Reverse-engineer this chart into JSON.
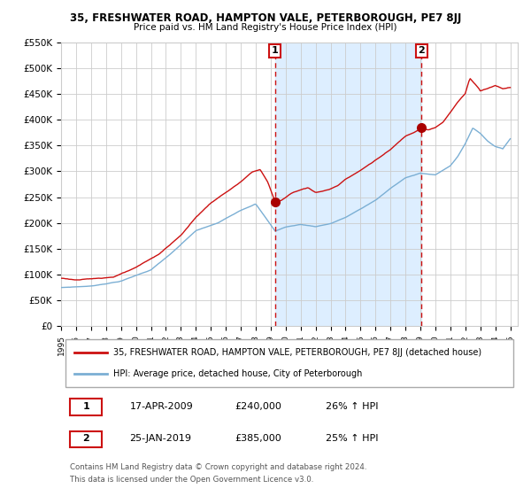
{
  "title": "35, FRESHWATER ROAD, HAMPTON VALE, PETERBOROUGH, PE7 8JJ",
  "subtitle": "Price paid vs. HM Land Registry's House Price Index (HPI)",
  "legend_line1": "35, FRESHWATER ROAD, HAMPTON VALE, PETERBOROUGH, PE7 8JJ (detached house)",
  "legend_line2": "HPI: Average price, detached house, City of Peterborough",
  "sale1_date": "17-APR-2009",
  "sale1_price": 240000,
  "sale1_pct": "26% ↑ HPI",
  "sale2_date": "25-JAN-2019",
  "sale2_price": 385000,
  "sale2_pct": "25% ↑ HPI",
  "sale1_x": 2009.29,
  "sale2_x": 2019.07,
  "hpi_color": "#7bafd4",
  "price_color": "#cc1111",
  "dot_color": "#aa0000",
  "vline_color": "#cc1111",
  "shade_color": "#ddeeff",
  "grid_color": "#cccccc",
  "bg_color": "#ffffff",
  "footer": "Contains HM Land Registry data © Crown copyright and database right 2024.\nThis data is licensed under the Open Government Licence v3.0.",
  "ylim_max": 550000,
  "ylim_min": 0,
  "yticks": [
    0,
    50000,
    100000,
    150000,
    200000,
    250000,
    300000,
    350000,
    400000,
    450000,
    500000,
    550000
  ],
  "ytick_labels": [
    "£0",
    "£50K",
    "£100K",
    "£150K",
    "£200K",
    "£250K",
    "£300K",
    "£350K",
    "£400K",
    "£450K",
    "£500K",
    "£550K"
  ],
  "xlim_min": 1995.0,
  "xlim_max": 2025.5
}
